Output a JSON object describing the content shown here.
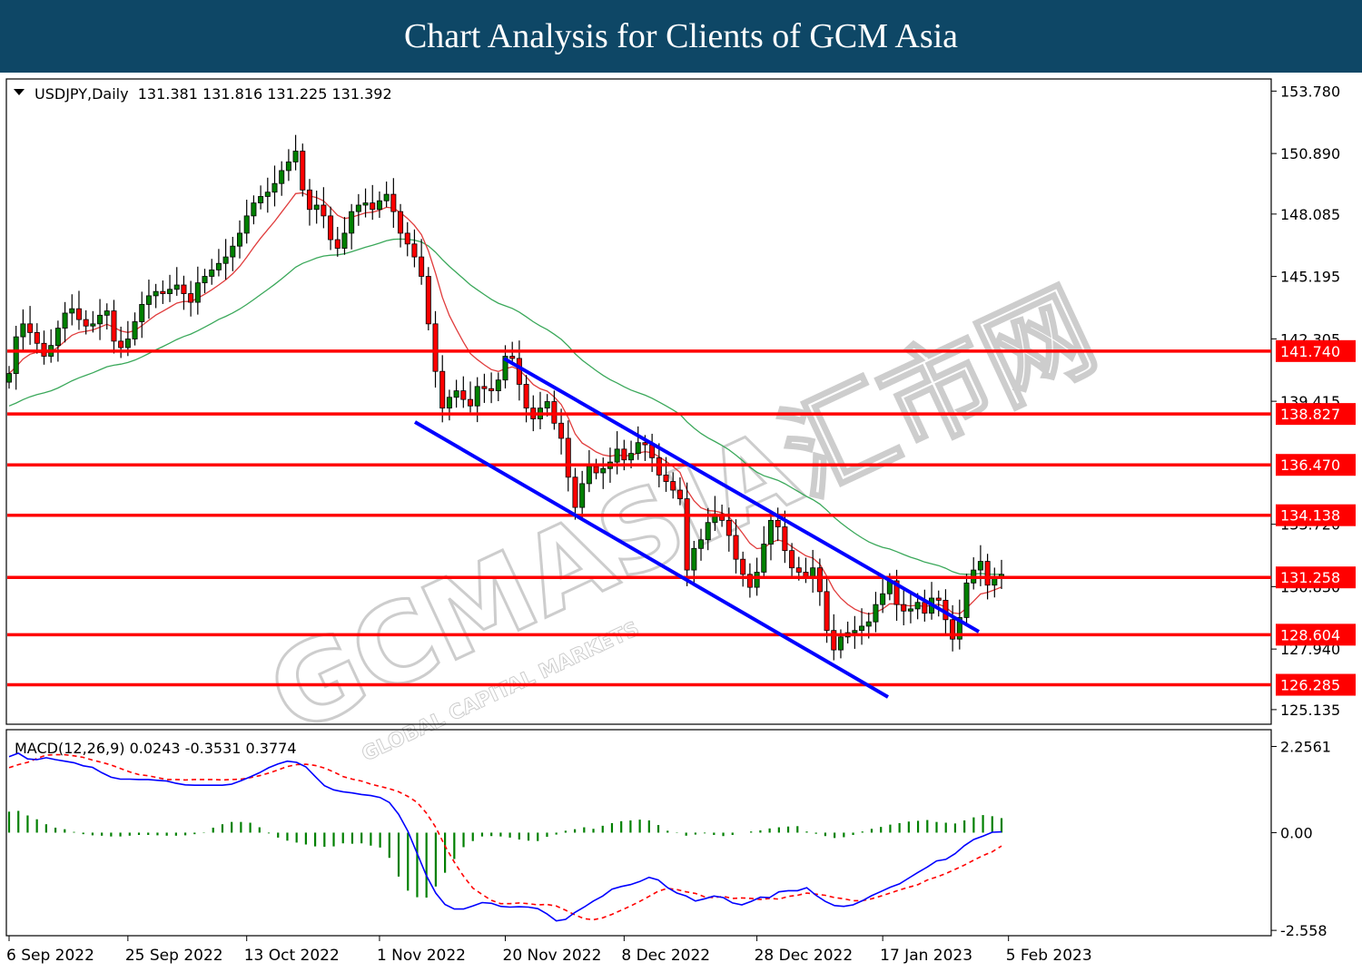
{
  "header": {
    "title": "Chart Analysis for Clients of GCM Asia"
  },
  "symbol_info": "USDJPY,Daily  131.381 131.816 131.225 131.392",
  "macd_info": "MACD(12,26,9) 0.0243 -0.3531 0.3774",
  "watermark": {
    "text": "GCMASIA汇市网",
    "subtext": "GLOBAL CAPITAL MARKETS"
  },
  "colors": {
    "banner": "#0e4766",
    "support_resistance": "#ff0000",
    "channel": "#0000ff",
    "bull_candle": "#008000",
    "bear_candle": "#ff0000",
    "ma_fast": "#e03c3c",
    "ma_slow": "#3aa85a",
    "macd_line": "#0000ff",
    "signal_line": "#ff0000",
    "histogram": "#008000"
  },
  "chart_data": [
    {
      "type": "candlestick",
      "symbol": "USDJPY",
      "timeframe": "Daily",
      "ohlc_last": {
        "open": 131.381,
        "high": 131.816,
        "low": 131.225,
        "close": 131.392
      },
      "y_ticks": [
        "153.780",
        "150.890",
        "148.085",
        "145.195",
        "142.305",
        "139.415",
        "133.720",
        "130.830",
        "127.940",
        "125.135"
      ],
      "x_ticks": [
        "6 Sep 2022",
        "25 Sep 2022",
        "13 Oct 2022",
        "1 Nov 2022",
        "20 Nov 2022",
        "8 Dec 2022",
        "28 Dec 2022",
        "17 Jan 2023",
        "5 Feb 2023"
      ],
      "ylim": [
        124.5,
        154.3
      ],
      "levels": [
        141.74,
        138.827,
        136.47,
        134.138,
        131.258,
        128.604,
        126.285
      ],
      "level_labels": [
        "141.740",
        "138.827",
        "136.470",
        "134.138",
        "131.258",
        "128.604",
        "126.285"
      ],
      "closes": [
        140.7,
        142.4,
        143.0,
        142.6,
        142.1,
        141.5,
        142.0,
        142.8,
        143.5,
        143.7,
        143.2,
        142.9,
        143.0,
        143.4,
        143.6,
        142.2,
        141.9,
        142.3,
        143.1,
        143.9,
        144.3,
        144.5,
        144.4,
        144.6,
        144.8,
        144.4,
        144.0,
        144.9,
        145.2,
        145.5,
        145.8,
        146.1,
        146.6,
        147.2,
        148.0,
        148.6,
        148.9,
        149.1,
        149.5,
        150.1,
        150.5,
        151.0,
        149.2,
        148.3,
        148.5,
        148.0,
        146.9,
        146.5,
        147.2,
        148.2,
        148.5,
        148.6,
        148.3,
        148.7,
        149.0,
        148.2,
        147.2,
        146.7,
        146.1,
        145.2,
        143.0,
        140.8,
        139.1,
        139.6,
        139.9,
        139.5,
        139.2,
        140.1,
        140.0,
        139.9,
        140.4,
        141.5,
        141.4,
        140.2,
        139.1,
        138.6,
        139.1,
        139.4,
        138.4,
        137.7,
        135.9,
        134.5,
        135.6,
        136.4,
        136.1,
        136.3,
        136.6,
        137.2,
        136.7,
        137.0,
        137.5,
        137.4,
        136.8,
        136.0,
        135.7,
        135.3,
        134.9,
        131.6,
        132.6,
        133.0,
        133.8,
        134.2,
        133.9,
        133.2,
        132.1,
        131.4,
        130.8,
        131.5,
        132.8,
        133.9,
        133.6,
        132.5,
        131.7,
        131.5,
        131.3,
        131.7,
        130.6,
        128.8,
        127.9,
        128.5,
        128.7,
        128.8,
        129.0,
        129.2,
        130.0,
        130.5,
        131.1,
        130.0,
        129.7,
        129.8,
        130.1,
        129.6,
        130.3,
        130.2,
        129.3,
        128.4,
        129.4,
        131.0,
        131.6,
        132.0,
        130.9,
        131.2,
        131.4
      ],
      "series": [
        {
          "name": "MACD",
          "values": [
            1.99,
            2.08,
            1.93,
            1.91,
            1.96,
            1.91,
            1.87,
            1.83,
            1.75,
            1.71,
            1.57,
            1.45,
            1.4,
            1.4,
            1.39,
            1.39,
            1.37,
            1.35,
            1.29,
            1.25,
            1.24,
            1.24,
            1.24,
            1.24,
            1.27,
            1.36,
            1.46,
            1.57,
            1.7,
            1.8,
            1.87,
            1.84,
            1.72,
            1.47,
            1.23,
            1.12,
            1.07,
            1.04,
            1.0,
            0.97,
            0.92,
            0.79,
            0.48,
            0.04,
            -0.55,
            -1.13,
            -1.58,
            -1.88,
            -2.0,
            -2.0,
            -1.92,
            -1.83,
            -1.85,
            -1.93,
            -1.95,
            -1.94,
            -1.95,
            -1.99,
            -2.13,
            -2.31,
            -2.27,
            -2.09,
            -1.95,
            -1.79,
            -1.66,
            -1.48,
            -1.41,
            -1.36,
            -1.28,
            -1.17,
            -1.24,
            -1.44,
            -1.58,
            -1.66,
            -1.79,
            -1.73,
            -1.66,
            -1.7,
            -1.84,
            -1.89,
            -1.8,
            -1.69,
            -1.7,
            -1.55,
            -1.52,
            -1.52,
            -1.44,
            -1.64,
            -1.8,
            -1.91,
            -1.93,
            -1.89,
            -1.78,
            -1.65,
            -1.54,
            -1.43,
            -1.34,
            -1.19,
            -1.04,
            -0.9,
            -0.74,
            -0.7,
            -0.55,
            -0.34,
            -0.18,
            -0.09,
            0.01,
            0.02
          ]
        },
        {
          "name": "Signal",
          "values": [
            1.7,
            1.78,
            1.84,
            1.94,
            2.03,
            2.04,
            2.04,
            2.01,
            1.97,
            1.9,
            1.84,
            1.77,
            1.68,
            1.59,
            1.52,
            1.49,
            1.44,
            1.39,
            1.39,
            1.38,
            1.39,
            1.39,
            1.39,
            1.38,
            1.39,
            1.4,
            1.44,
            1.49,
            1.56,
            1.64,
            1.73,
            1.78,
            1.79,
            1.76,
            1.69,
            1.59,
            1.47,
            1.4,
            1.35,
            1.27,
            1.21,
            1.15,
            1.07,
            0.95,
            0.79,
            0.51,
            0.14,
            -0.35,
            -0.77,
            -1.14,
            -1.45,
            -1.62,
            -1.77,
            -1.86,
            -1.86,
            -1.84,
            -1.86,
            -1.89,
            -1.88,
            -1.92,
            -2.03,
            -2.15,
            -2.25,
            -2.28,
            -2.23,
            -2.14,
            -2.03,
            -1.92,
            -1.8,
            -1.67,
            -1.53,
            -1.46,
            -1.49,
            -1.55,
            -1.59,
            -1.68,
            -1.7,
            -1.67,
            -1.72,
            -1.71,
            -1.72,
            -1.75,
            -1.72,
            -1.74,
            -1.67,
            -1.64,
            -1.58,
            -1.61,
            -1.64,
            -1.7,
            -1.73,
            -1.78,
            -1.78,
            -1.73,
            -1.66,
            -1.58,
            -1.5,
            -1.43,
            -1.36,
            -1.24,
            -1.16,
            -1.07,
            -0.96,
            -0.85,
            -0.72,
            -0.6,
            -0.5,
            -0.35
          ]
        },
        {
          "name": "Histogram",
          "values": [
            0.55,
            0.57,
            0.45,
            0.35,
            0.22,
            0.13,
            0.09,
            0.02,
            -0.04,
            -0.07,
            -0.08,
            -0.1,
            -0.1,
            -0.08,
            -0.06,
            -0.06,
            -0.07,
            -0.08,
            -0.08,
            -0.07,
            -0.04,
            0.01,
            0.13,
            0.22,
            0.28,
            0.28,
            0.26,
            0.14,
            -0.02,
            -0.13,
            -0.21,
            -0.26,
            -0.31,
            -0.36,
            -0.37,
            -0.36,
            -0.28,
            -0.29,
            -0.28,
            -0.34,
            -0.39,
            -0.66,
            -1.15,
            -1.52,
            -1.69,
            -1.7,
            -1.41,
            -1.05,
            -0.69,
            -0.38,
            -0.22,
            -0.1,
            -0.09,
            -0.1,
            -0.13,
            -0.18,
            -0.21,
            -0.22,
            -0.11,
            -0.05,
            0.05,
            0.09,
            0.14,
            0.1,
            0.18,
            0.25,
            0.3,
            0.32,
            0.34,
            0.32,
            0.2,
            0.05,
            0.01,
            -0.08,
            -0.05,
            -0.02,
            -0.06,
            -0.09,
            -0.06,
            0.0,
            0.03,
            0.06,
            0.11,
            0.14,
            0.16,
            0.17,
            0.03,
            -0.03,
            -0.09,
            -0.14,
            -0.12,
            -0.06,
            0.03,
            0.1,
            0.15,
            0.21,
            0.25,
            0.29,
            0.31,
            0.33,
            0.28,
            0.26,
            0.24,
            0.32,
            0.4,
            0.46,
            0.43,
            0.38
          ]
        }
      ],
      "macd_ticks": [
        "2.2561",
        "0.00",
        "-2.558"
      ],
      "macd_ylim": [
        -2.65,
        2.6
      ]
    }
  ]
}
